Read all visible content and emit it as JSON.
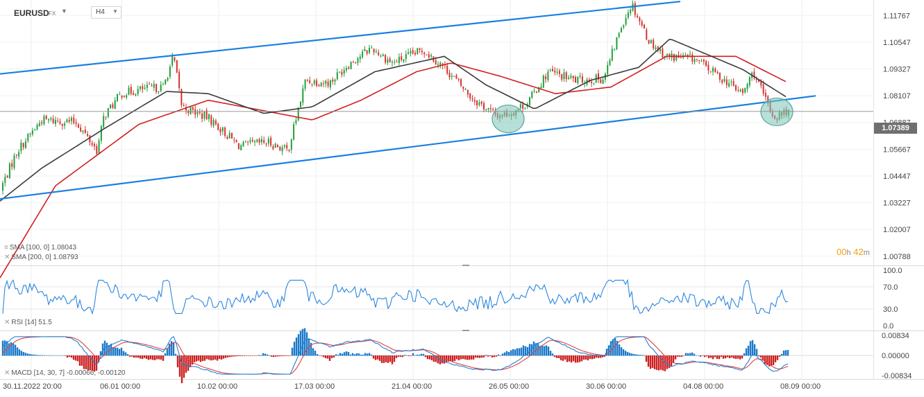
{
  "header": {
    "symbol": "EURUSD",
    "symbol_type": "FX",
    "timeframe": "H4"
  },
  "indicators": {
    "sma100_label": "SMA [100, 0] 1.08043",
    "sma200_label": "SMA [200, 0] 1.08793",
    "rsi_label": "RSI [14] 51.5",
    "macd_label": "MACD [14, 30, 7] -0.00066, -0.00120"
  },
  "current_price": "1.07389",
  "countdown": {
    "hours": "00",
    "h": "h",
    "minutes": "42",
    "m": "m"
  },
  "colors": {
    "candle_up": "#1f9e3a",
    "candle_down": "#d6322d",
    "sma100": "#3a3a3a",
    "sma200": "#d21f1f",
    "channel": "#1a7fe0",
    "rsi": "#2b86e0",
    "macd_line": "#1f7fd0",
    "signal_line": "#e04040",
    "hist_pos": "#1a78c8",
    "hist_neg": "#cc1f1f",
    "highlight": "#7ec5b8"
  },
  "chart_data": {
    "type": "candlestick",
    "symbol": "EURUSD",
    "timeframe": "H4",
    "x_labels": [
      "30.11.2022  20:00",
      "06.01 00:00",
      "10.02 00:00",
      "17.03 00:00",
      "21.04 00:00",
      "26.05 00:00",
      "30.06 00:00",
      "04.08 00:00",
      "08.09 00:00"
    ],
    "y_ticks": [
      "1.11767",
      "1.10547",
      "1.09327",
      "1.08107",
      "1.06887",
      "1.05667",
      "1.04447",
      "1.03227",
      "1.02007",
      "1.00788"
    ],
    "ylim": [
      1.0037,
      1.1247
    ],
    "price_path": [
      [
        0,
        1.038
      ],
      [
        25,
        1.056
      ],
      [
        60,
        1.07
      ],
      [
        110,
        1.069
      ],
      [
        140,
        1.056
      ],
      [
        150,
        1.072
      ],
      [
        175,
        1.082
      ],
      [
        205,
        1.084
      ],
      [
        235,
        1.085
      ],
      [
        250,
        1.099
      ],
      [
        262,
        1.076
      ],
      [
        300,
        1.071
      ],
      [
        345,
        1.058
      ],
      [
        385,
        1.06
      ],
      [
        415,
        1.056
      ],
      [
        440,
        1.088
      ],
      [
        475,
        1.087
      ],
      [
        500,
        1.095
      ],
      [
        535,
        1.103
      ],
      [
        565,
        1.096
      ],
      [
        610,
        1.102
      ],
      [
        640,
        1.094
      ],
      [
        680,
        1.08
      ],
      [
        715,
        1.072
      ],
      [
        735,
        1.073
      ],
      [
        760,
        1.078
      ],
      [
        790,
        1.092
      ],
      [
        830,
        1.088
      ],
      [
        870,
        1.089
      ],
      [
        895,
        1.113
      ],
      [
        910,
        1.123
      ],
      [
        935,
        1.106
      ],
      [
        960,
        1.099
      ],
      [
        1000,
        1.098
      ],
      [
        1040,
        1.089
      ],
      [
        1070,
        1.082
      ],
      [
        1085,
        1.092
      ],
      [
        1100,
        1.081
      ],
      [
        1115,
        1.071
      ],
      [
        1135,
        1.074
      ]
    ],
    "sma100_path": [
      [
        0,
        1.033
      ],
      [
        60,
        1.048
      ],
      [
        150,
        1.066
      ],
      [
        240,
        1.083
      ],
      [
        300,
        1.082
      ],
      [
        380,
        1.073
      ],
      [
        450,
        1.076
      ],
      [
        540,
        1.092
      ],
      [
        640,
        1.099
      ],
      [
        700,
        1.086
      ],
      [
        770,
        1.075
      ],
      [
        850,
        1.088
      ],
      [
        920,
        1.094
      ],
      [
        965,
        1.107
      ],
      [
        1010,
        1.101
      ],
      [
        1070,
        1.093
      ],
      [
        1135,
        1.08
      ]
    ],
    "sma200_path": [
      [
        0,
        0.998
      ],
      [
        80,
        1.04
      ],
      [
        200,
        1.068
      ],
      [
        300,
        1.079
      ],
      [
        400,
        1.073
      ],
      [
        450,
        1.07
      ],
      [
        520,
        1.079
      ],
      [
        600,
        1.092
      ],
      [
        650,
        1.096
      ],
      [
        720,
        1.09
      ],
      [
        800,
        1.082
      ],
      [
        880,
        1.085
      ],
      [
        960,
        1.099
      ],
      [
        1060,
        1.099
      ],
      [
        1135,
        1.087
      ]
    ],
    "channel_upper": [
      [
        0,
        1.091
      ],
      [
        980,
        1.124
      ]
    ],
    "channel_lower": [
      [
        0,
        1.034
      ],
      [
        1175,
        1.081
      ]
    ],
    "highlight_zones": [
      {
        "x": 732,
        "price": 1.0705
      },
      {
        "x": 1119,
        "price": 1.0737
      }
    ],
    "rsi": {
      "label": "RSI [14] 51.5",
      "ticks": [
        "100.0",
        "70.0",
        "30.0",
        "0.0"
      ],
      "ylim": [
        0,
        100
      ]
    },
    "macd": {
      "label": "MACD [14, 30, 7] -0.00066, -0.00120",
      "ticks": [
        "0.00834",
        "0.00000",
        "-0.00834"
      ],
      "ylim": [
        -0.00834,
        0.00834
      ]
    }
  }
}
